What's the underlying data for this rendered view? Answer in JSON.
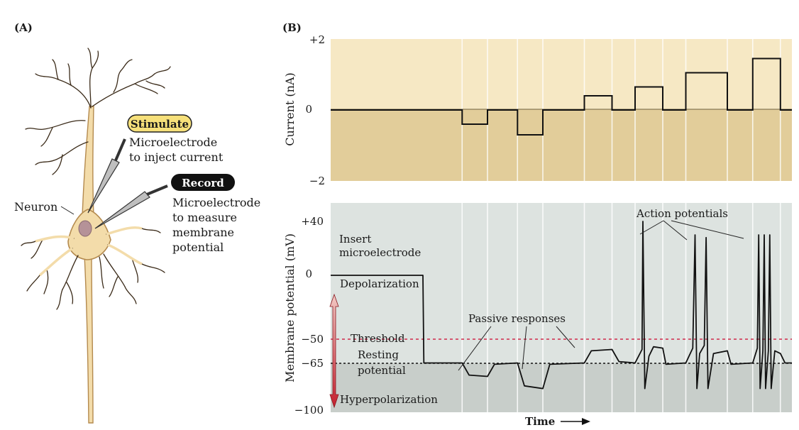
{
  "panel_a": {
    "label": "(A)",
    "neuron_label": "Neuron",
    "stimulate": {
      "badge": "Stimulate",
      "line1": "Microelectrode",
      "line2": "to inject current"
    },
    "record": {
      "badge": "Record",
      "line1": "Microelectrode",
      "line2": "to measure",
      "line3": "membrane",
      "line4": "potential"
    },
    "colors": {
      "neuron_fill": "#f3dcaa",
      "neuron_outline": "#b48a4e",
      "nucleus": "#b59298",
      "stimulate_badge": "#f6e07a",
      "record_badge": "#111111"
    }
  },
  "panel_b": {
    "label": "(B)",
    "current": {
      "ylabel": "Current (nA)",
      "ticks": [
        "+2",
        "0",
        "−2"
      ],
      "ylim": [
        -2,
        2
      ],
      "steps": [
        {
          "start": 0.0,
          "end": 0.285,
          "value": 0
        },
        {
          "start": 0.285,
          "end": 0.34,
          "value": -0.4
        },
        {
          "start": 0.34,
          "end": 0.405,
          "value": 0
        },
        {
          "start": 0.405,
          "end": 0.46,
          "value": -0.7
        },
        {
          "start": 0.46,
          "end": 0.55,
          "value": 0
        },
        {
          "start": 0.55,
          "end": 0.61,
          "value": 0.4
        },
        {
          "start": 0.61,
          "end": 0.66,
          "value": 0
        },
        {
          "start": 0.66,
          "end": 0.72,
          "value": 0.65
        },
        {
          "start": 0.72,
          "end": 0.77,
          "value": 0
        },
        {
          "start": 0.77,
          "end": 0.86,
          "value": 1.05
        },
        {
          "start": 0.86,
          "end": 0.915,
          "value": 0
        },
        {
          "start": 0.915,
          "end": 0.975,
          "value": 1.45
        },
        {
          "start": 0.975,
          "end": 1.0,
          "value": 0
        }
      ],
      "colors": {
        "above_zero": "#f6e8c4",
        "below_zero": "#e2cd9a"
      }
    },
    "potential": {
      "ylabel": "Membrane potential (mV)",
      "ticks": [
        "+40",
        "0",
        "−50",
        "−65",
        "−100"
      ],
      "tick_values": [
        40,
        0,
        -50,
        -65,
        -100
      ],
      "threshold_mv": -50,
      "resting_mv": -65,
      "annotations": {
        "insert_1": "Insert",
        "insert_2": "microelectrode",
        "depolarization": "Depolarization",
        "threshold": "Threshold",
        "resting_1": "Resting",
        "resting_2": "potential",
        "hyperpolarization": "Hyperpolarization",
        "passive": "Passive responses",
        "action": "Action potentials"
      },
      "colors": {
        "background": "#dde3e0",
        "lower_band": "#c8ceca",
        "threshold_line": "#d02a4a",
        "arrow_top": "#f2c9c4",
        "arrow_bottom": "#c4202e"
      }
    },
    "xlabel": "Time"
  }
}
